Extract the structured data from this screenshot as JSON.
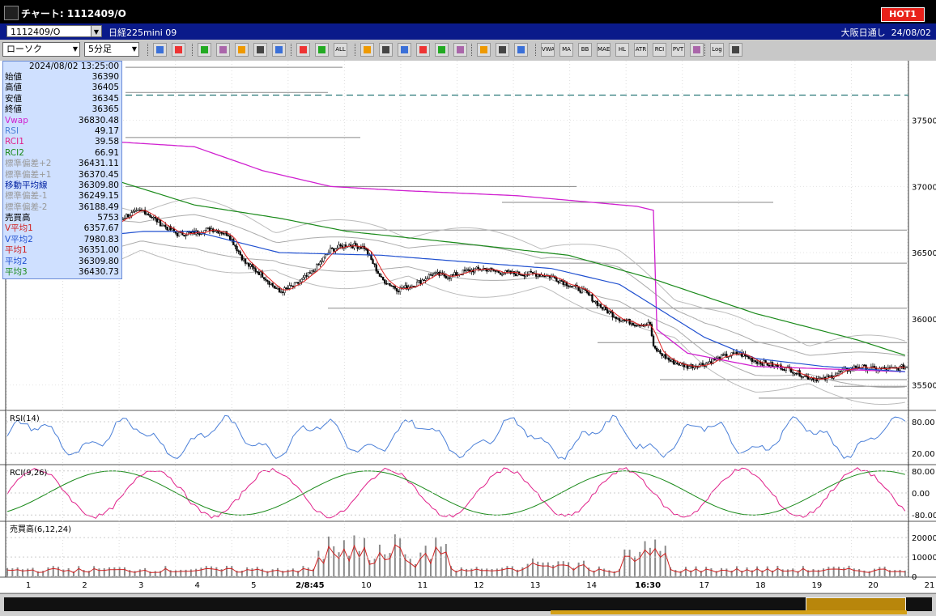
{
  "window": {
    "title": "チャート: 1112409/O",
    "hot_label": "HOT1"
  },
  "infobar": {
    "symbol": "1112409/O",
    "name": "日経225mini 09",
    "session": "大阪日通し",
    "date": "24/08/02"
  },
  "toolbar": {
    "chart_type": "ローソク",
    "interval": "5分足",
    "buttons": [
      "search",
      "cross",
      "draw",
      "zoom",
      "fit",
      "flag",
      "clear",
      "candle",
      "pnf",
      "all",
      "trend",
      "edit",
      "cursor",
      "arrow",
      "memo",
      "trash",
      "grid",
      "tool",
      "color",
      "vwap",
      "ma",
      "bb",
      "mae",
      "hl",
      "atr",
      "rci",
      "pvt",
      "box",
      "log",
      "exit"
    ],
    "text_buttons": {
      "vwap": "VWAP",
      "ma": "MA",
      "bb": "BB",
      "mae": "MAE",
      "hl": "HL",
      "atr": "ATR",
      "rci": "RCI",
      "pvt": "PVT",
      "log": "Log",
      "all": "ALL"
    }
  },
  "info_panel": {
    "datetime": "2024/08/02 13:25:00",
    "rows": [
      {
        "label": "始値",
        "value": "36390",
        "color": "#000000"
      },
      {
        "label": "高値",
        "value": "36405",
        "color": "#000000"
      },
      {
        "label": "安値",
        "value": "36345",
        "color": "#000000"
      },
      {
        "label": "終値",
        "value": "36365",
        "color": "#000000"
      },
      {
        "label": "Vwap",
        "value": "36830.48",
        "color": "#d020d0"
      },
      {
        "label": "RSI",
        "value": "49.17",
        "color": "#4a7fd8"
      },
      {
        "label": "RCI1",
        "value": "39.58",
        "color": "#e0208a"
      },
      {
        "label": "RCI2",
        "value": "66.91",
        "color": "#1a8a1a"
      },
      {
        "label": "標準偏差+2",
        "value": "36431.11",
        "color": "#999999"
      },
      {
        "label": "標準偏差+1",
        "value": "36370.45",
        "color": "#999999"
      },
      {
        "label": "移動平均線",
        "value": "36309.80",
        "color": "#0020a0"
      },
      {
        "label": "標準偏差-1",
        "value": "36249.15",
        "color": "#999999"
      },
      {
        "label": "標準偏差-2",
        "value": "36188.49",
        "color": "#999999"
      },
      {
        "label": "売買高",
        "value": "5753",
        "color": "#000000"
      },
      {
        "label": "V平均1",
        "value": "6357.67",
        "color": "#d02020"
      },
      {
        "label": "V平均2",
        "value": "7980.83",
        "color": "#2050d0"
      },
      {
        "label": "平均1",
        "value": "36351.00",
        "color": "#d02020"
      },
      {
        "label": "平均2",
        "value": "36309.80",
        "color": "#2050d0"
      },
      {
        "label": "平均3",
        "value": "36430.73",
        "color": "#1a8a1a"
      }
    ]
  },
  "panels": {
    "rsi_title": "RSI(14)",
    "rci_title": "RCI(9,26)",
    "vol_title": "売買高(6,12,24)"
  },
  "chart_data": {
    "type": "candlestick",
    "price_axis": {
      "ticks": [
        "37500",
        "37000",
        "36500",
        "36000",
        "35500"
      ],
      "range": [
        35320,
        37950
      ]
    },
    "rsi_axis": {
      "ticks": [
        "80.00",
        "20.00"
      ],
      "range": [
        0,
        100
      ]
    },
    "rci_axis": {
      "ticks": [
        "80.00",
        "0.00",
        "-80.00"
      ],
      "range": [
        -100,
        100
      ]
    },
    "vol_axis": {
      "ticks": [
        "20000",
        "10000",
        "0"
      ],
      "range": [
        0,
        28000
      ]
    },
    "x_labels": [
      {
        "text": "1",
        "bold": false
      },
      {
        "text": "2",
        "bold": false
      },
      {
        "text": "3",
        "bold": false
      },
      {
        "text": "4",
        "bold": false
      },
      {
        "text": "5",
        "bold": false
      },
      {
        "text": "2/8:45",
        "bold": true
      },
      {
        "text": "10",
        "bold": false
      },
      {
        "text": "11",
        "bold": false
      },
      {
        "text": "12",
        "bold": false
      },
      {
        "text": "13",
        "bold": false
      },
      {
        "text": "14",
        "bold": false
      },
      {
        "text": "16:30",
        "bold": true
      },
      {
        "text": "17",
        "bold": false
      },
      {
        "text": "18",
        "bold": false
      },
      {
        "text": "19",
        "bold": false
      },
      {
        "text": "20",
        "bold": false
      },
      {
        "text": "21",
        "bold": false
      }
    ],
    "price_anchors": [
      [
        0,
        36550
      ],
      [
        5,
        36620
      ],
      [
        12,
        36700
      ],
      [
        20,
        36620
      ],
      [
        30,
        36560
      ],
      [
        40,
        36540
      ],
      [
        50,
        36520
      ],
      [
        60,
        36700
      ],
      [
        70,
        36780
      ],
      [
        80,
        36820
      ],
      [
        90,
        36720
      ],
      [
        100,
        36640
      ],
      [
        110,
        36650
      ],
      [
        120,
        36680
      ],
      [
        130,
        36640
      ],
      [
        140,
        36420
      ],
      [
        150,
        36330
      ],
      [
        160,
        36200
      ],
      [
        170,
        36260
      ],
      [
        180,
        36360
      ],
      [
        190,
        36520
      ],
      [
        200,
        36560
      ],
      [
        210,
        36540
      ],
      [
        220,
        36300
      ],
      [
        230,
        36220
      ],
      [
        240,
        36260
      ],
      [
        250,
        36340
      ],
      [
        260,
        36320
      ],
      [
        270,
        36360
      ],
      [
        280,
        36380
      ],
      [
        290,
        36350
      ],
      [
        300,
        36340
      ],
      [
        310,
        36340
      ],
      [
        320,
        36320
      ],
      [
        330,
        36260
      ],
      [
        340,
        36200
      ],
      [
        350,
        36080
      ],
      [
        360,
        36000
      ],
      [
        370,
        35960
      ],
      [
        378,
        35960
      ],
      [
        380,
        35780
      ],
      [
        390,
        35680
      ],
      [
        400,
        35640
      ],
      [
        410,
        35660
      ],
      [
        420,
        35710
      ],
      [
        430,
        35740
      ],
      [
        440,
        35680
      ],
      [
        450,
        35650
      ],
      [
        460,
        35620
      ],
      [
        470,
        35560
      ],
      [
        480,
        35540
      ],
      [
        490,
        35600
      ],
      [
        500,
        35640
      ],
      [
        510,
        35620
      ],
      [
        520,
        35620
      ],
      [
        529,
        35640
      ]
    ],
    "vwap_anchors": [
      [
        0,
        37460
      ],
      [
        60,
        37340
      ],
      [
        110,
        37300
      ],
      [
        150,
        37120
      ],
      [
        190,
        37000
      ],
      [
        230,
        36970
      ],
      [
        300,
        36930
      ],
      [
        370,
        36850
      ],
      [
        380,
        36820
      ],
      [
        382,
        35920
      ],
      [
        400,
        35740
      ],
      [
        440,
        35640
      ],
      [
        529,
        35600
      ]
    ],
    "ma3_anchors": [
      [
        0,
        37380
      ],
      [
        60,
        37060
      ],
      [
        110,
        36860
      ],
      [
        160,
        36760
      ],
      [
        200,
        36660
      ],
      [
        260,
        36580
      ],
      [
        330,
        36480
      ],
      [
        380,
        36300
      ],
      [
        440,
        36040
      ],
      [
        500,
        35840
      ],
      [
        529,
        35720
      ]
    ],
    "ma2_anchors": [
      [
        0,
        36700
      ],
      [
        40,
        36610
      ],
      [
        80,
        36660
      ],
      [
        110,
        36660
      ],
      [
        160,
        36500
      ],
      [
        220,
        36480
      ],
      [
        260,
        36440
      ],
      [
        320,
        36380
      ],
      [
        360,
        36260
      ],
      [
        380,
        36100
      ],
      [
        410,
        35860
      ],
      [
        440,
        35700
      ],
      [
        480,
        35640
      ],
      [
        529,
        35600
      ]
    ],
    "hlines": [
      {
        "price": 37900,
        "x1": 155,
        "x2": 423
      },
      {
        "price": 37710,
        "x1": 155,
        "x2": 405
      },
      {
        "price": 37370,
        "x1": 155,
        "x2": 445
      },
      {
        "price": 37000,
        "x1": 155,
        "x2": 712
      },
      {
        "price": 36880,
        "x1": 620,
        "x2": 955
      },
      {
        "price": 36670,
        "x1": 420,
        "x2": 1120
      },
      {
        "price": 36420,
        "x1": 660,
        "x2": 1120
      },
      {
        "price": 36080,
        "x1": 405,
        "x2": 1120
      },
      {
        "price": 35820,
        "x1": 738,
        "x2": 1120
      },
      {
        "price": 35540,
        "x1": 815,
        "x2": 1120
      },
      {
        "price": 35490,
        "x1": 1030,
        "x2": 1120
      },
      {
        "price": 35400,
        "x1": 937,
        "x2": 1120
      }
    ],
    "dashed_price": 37690
  }
}
